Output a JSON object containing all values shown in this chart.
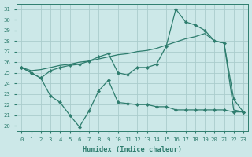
{
  "xlabel": "Humidex (Indice chaleur)",
  "background_color": "#cce8e8",
  "grid_color": "#aacccc",
  "line_color": "#2e7d6e",
  "xlim": [
    -0.5,
    23.5
  ],
  "ylim": [
    19.5,
    31.5
  ],
  "xticks": [
    0,
    1,
    2,
    3,
    4,
    5,
    6,
    7,
    8,
    9,
    10,
    11,
    12,
    13,
    14,
    15,
    16,
    17,
    18,
    19,
    20,
    21,
    22,
    23
  ],
  "yticks": [
    20,
    21,
    22,
    23,
    24,
    25,
    26,
    27,
    28,
    29,
    30,
    31
  ],
  "series": [
    {
      "x": [
        0,
        1,
        2,
        3,
        4,
        5,
        6,
        7,
        8,
        9,
        10,
        11,
        12,
        13,
        14,
        15,
        16,
        17,
        18,
        19,
        20,
        21,
        22,
        23
      ],
      "y": [
        25.5,
        25.0,
        24.5,
        22.8,
        22.2,
        21.0,
        19.9,
        21.4,
        23.3,
        24.3,
        22.2,
        22.1,
        22.0,
        22.0,
        21.8,
        21.8,
        21.5,
        21.5,
        21.5,
        21.5,
        21.5,
        21.5,
        21.3,
        21.3
      ],
      "marker": true,
      "linewidth": 0.9
    },
    {
      "x": [
        0,
        1,
        2,
        3,
        4,
        5,
        6,
        7,
        8,
        9,
        10,
        11,
        12,
        13,
        14,
        15,
        16,
        17,
        18,
        19,
        20,
        21,
        22,
        23
      ],
      "y": [
        25.5,
        25.2,
        25.3,
        25.5,
        25.7,
        25.8,
        26.0,
        26.1,
        26.3,
        26.5,
        26.7,
        26.8,
        27.0,
        27.1,
        27.3,
        27.6,
        27.9,
        28.2,
        28.4,
        28.7,
        28.0,
        27.8,
        21.5,
        21.3
      ],
      "marker": false,
      "linewidth": 0.9
    },
    {
      "x": [
        0,
        1,
        2,
        3,
        4,
        5,
        6,
        7,
        8,
        9,
        10,
        11,
        12,
        13,
        14,
        15,
        16,
        17,
        18,
        19,
        20,
        21,
        22,
        23
      ],
      "y": [
        25.5,
        25.0,
        24.5,
        25.2,
        25.5,
        25.7,
        25.8,
        26.1,
        26.5,
        26.8,
        25.0,
        24.8,
        25.5,
        25.5,
        25.8,
        27.5,
        31.0,
        29.8,
        29.5,
        29.0,
        28.0,
        27.8,
        22.5,
        21.3
      ],
      "marker": true,
      "linewidth": 0.9
    }
  ]
}
